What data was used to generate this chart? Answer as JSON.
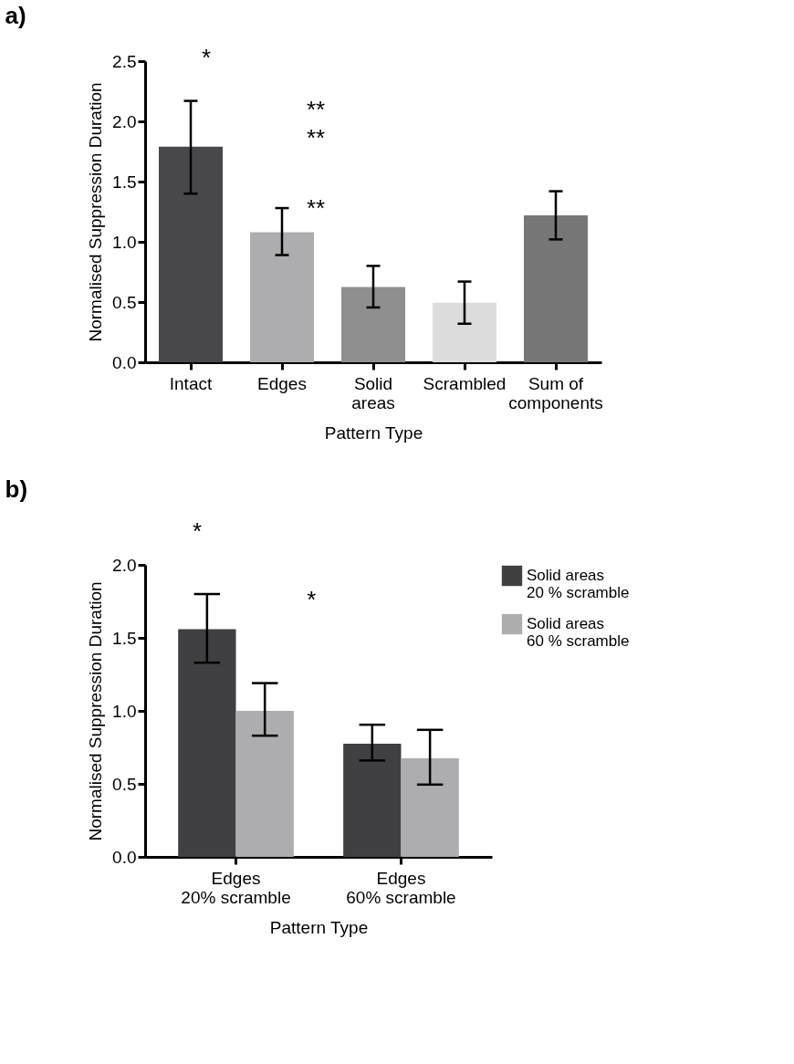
{
  "chart_data": [
    {
      "type": "bar",
      "title": "a)",
      "xlabel": "Pattern Type",
      "ylabel": "Normalised Suppression Duration",
      "categories": [
        "Intact",
        "Edges",
        "Solid\nareas",
        "Scrambled",
        "Sum of\ncomponents"
      ],
      "values": [
        1.79,
        1.08,
        0.625,
        0.495,
        1.22
      ],
      "colors": [
        "#48474c",
        "#adadaf",
        "#8f8f8f",
        "#dcdcdc",
        "#777777"
      ],
      "errors": [
        [
          1.4,
          2.17
        ],
        [
          0.89,
          1.28
        ],
        [
          0.455,
          0.8
        ],
        [
          0.32,
          0.67
        ],
        [
          1.02,
          1.42
        ]
      ],
      "ylim": [
        0,
        2.5
      ],
      "yticks": [
        {
          "value": 0,
          "label": "0.0"
        },
        0.5,
        {
          "value": 1,
          "label": "1.0"
        },
        1.5,
        {
          "value": 2,
          "label": "2.0"
        },
        2.5
      ],
      "grid": false,
      "legend": false,
      "annotations": [
        "*",
        "**",
        "**",
        "**"
      ]
    },
    {
      "type": "bar",
      "title": "b)",
      "xlabel": "Pattern Type",
      "ylabel": "Normalised Suppression Duration",
      "categories": [
        "Edges\n20% scramble",
        "Edges\n60% scramble"
      ],
      "series": [
        {
          "name": "Solid areas\n20 % scramble",
          "color": "#404042",
          "values": [
            1.56,
            0.775
          ],
          "errors": [
            [
              1.33,
              1.8
            ],
            [
              0.66,
              0.905
            ]
          ]
        },
        {
          "name": "Solid areas\n60 % scramble",
          "color": "#adadaf",
          "values": [
            1.0,
            0.675
          ],
          "errors": [
            [
              0.83,
              1.19
            ],
            [
              0.495,
              0.87
            ]
          ]
        }
      ],
      "ylim": [
        0,
        2.0
      ],
      "yticks": [
        {
          "value": 0,
          "label": "0.0"
        },
        0.5,
        {
          "value": 1,
          "label": "1.0"
        },
        1.5,
        {
          "value": 2,
          "label": "2.0"
        }
      ],
      "grid": false,
      "legend": "top right",
      "annotations": [
        "*",
        "*"
      ]
    }
  ]
}
